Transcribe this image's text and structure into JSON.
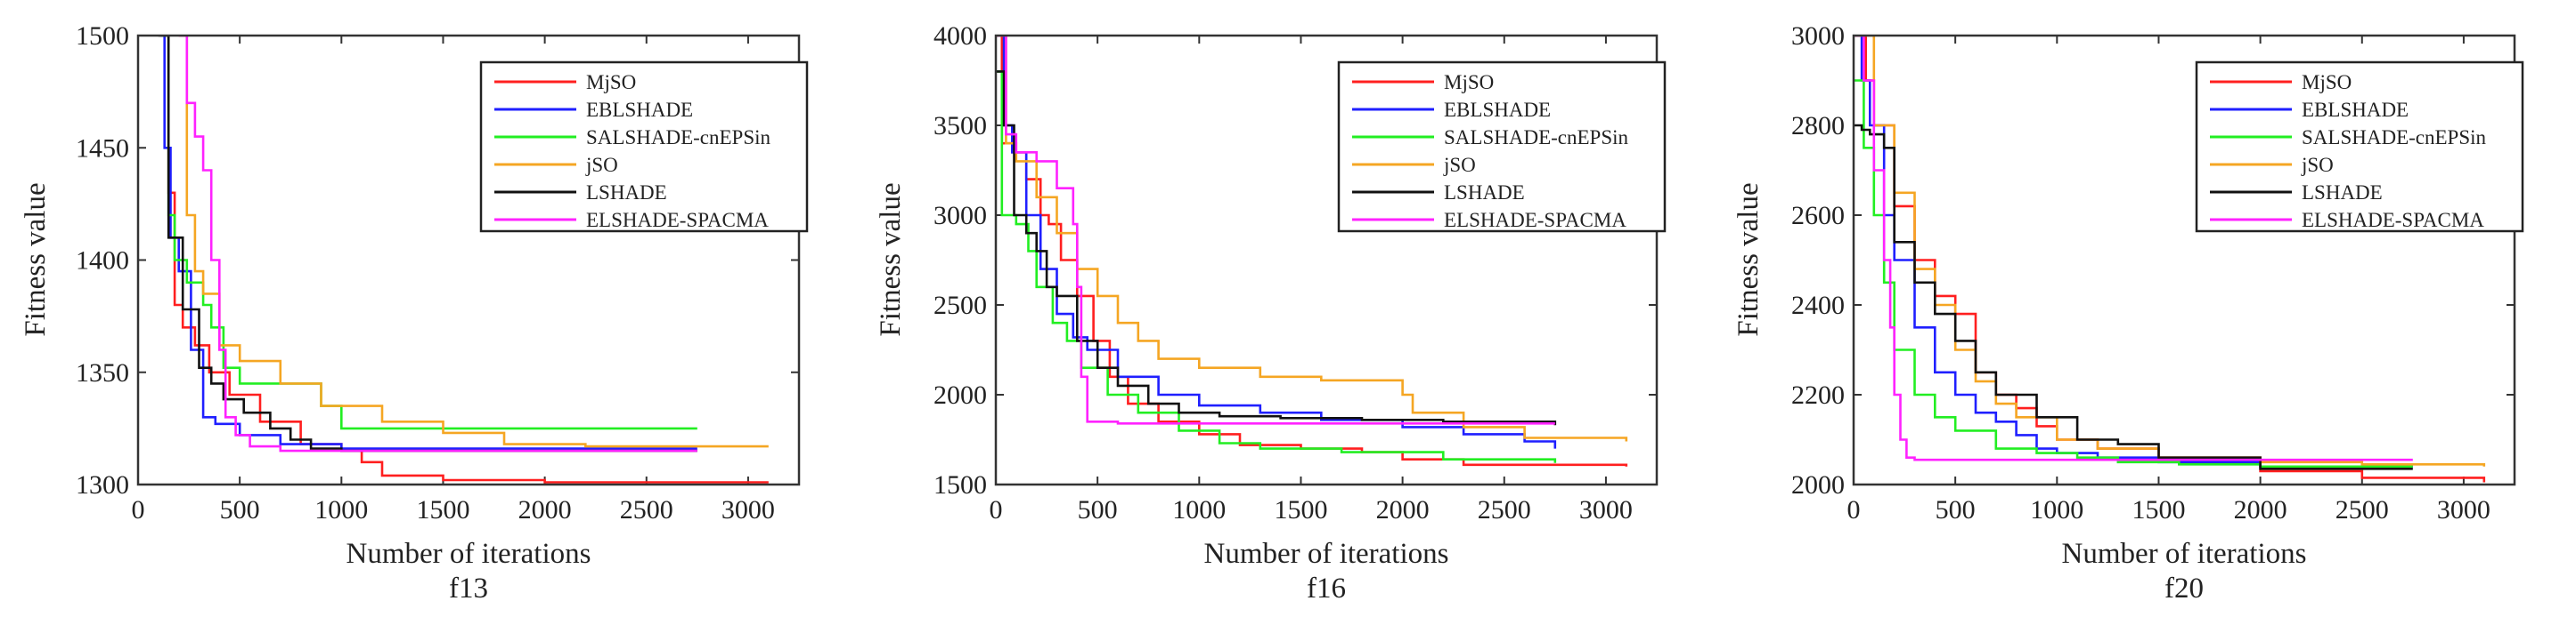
{
  "figure": {
    "series_names": [
      "MjSO",
      "EBLSHADE",
      "SALSHADE-cnEPSin",
      "jSO",
      "LSHADE",
      "ELSHADE-SPACMA"
    ],
    "series_colors": [
      "#ff1f1f",
      "#1f1fff",
      "#22ee22",
      "#f5a623",
      "#111111",
      "#ff22ff"
    ]
  },
  "chart_data": [
    {
      "type": "line",
      "subtitle": "f13",
      "xlabel": "Number of iterations",
      "ylabel": "Fitness value",
      "xlim": [
        0,
        3250
      ],
      "ylim": [
        1300,
        1500
      ],
      "xticks": [
        "0",
        "500",
        "1000",
        "1500",
        "2000",
        "2500",
        "3000"
      ],
      "yticks": [
        "1300",
        "1350",
        "1400",
        "1450",
        "1500"
      ],
      "legend_position": "top-right",
      "series": [
        {
          "name": "MjSO",
          "color": "#ff1f1f",
          "x": [
            120,
            150,
            180,
            220,
            280,
            350,
            450,
            600,
            800,
            1000,
            1100,
            1200,
            1500,
            2000,
            3100
          ],
          "y": [
            1500,
            1430,
            1380,
            1370,
            1362,
            1350,
            1340,
            1328,
            1318,
            1315,
            1310,
            1304,
            1302,
            1301,
            1301
          ]
        },
        {
          "name": "EBLSHADE",
          "color": "#1f1fff",
          "x": [
            110,
            130,
            160,
            200,
            260,
            320,
            380,
            500,
            700,
            1000,
            2750
          ],
          "y": [
            1500,
            1450,
            1410,
            1395,
            1360,
            1330,
            1327,
            1322,
            1318,
            1316,
            1316
          ]
        },
        {
          "name": "SALSHADE-cnEPSin",
          "color": "#22ee22",
          "x": [
            120,
            150,
            180,
            240,
            320,
            360,
            420,
            500,
            700,
            900,
            1000,
            2750
          ],
          "y": [
            1500,
            1420,
            1400,
            1390,
            1380,
            1370,
            1352,
            1345,
            1345,
            1335,
            1325,
            1325
          ]
        },
        {
          "name": "jSO",
          "color": "#f5a623",
          "x": [
            200,
            240,
            280,
            320,
            400,
            500,
            700,
            900,
            1200,
            1500,
            1800,
            2200,
            3100
          ],
          "y": [
            1500,
            1420,
            1395,
            1385,
            1362,
            1355,
            1345,
            1335,
            1328,
            1323,
            1318,
            1317,
            1317
          ]
        },
        {
          "name": "LSHADE",
          "color": "#111111",
          "x": [
            100,
            150,
            220,
            300,
            360,
            420,
            520,
            650,
            750,
            850,
            1000,
            2750
          ],
          "y": [
            1500,
            1410,
            1378,
            1352,
            1345,
            1338,
            1332,
            1325,
            1320,
            1316,
            1315,
            1315
          ]
        },
        {
          "name": "ELSHADE-SPACMA",
          "color": "#ff22ff",
          "x": [
            200,
            240,
            280,
            320,
            360,
            400,
            430,
            480,
            550,
            700,
            2750
          ],
          "y": [
            1500,
            1470,
            1455,
            1440,
            1400,
            1360,
            1330,
            1322,
            1317,
            1315,
            1315
          ]
        }
      ]
    },
    {
      "type": "line",
      "subtitle": "f16",
      "xlabel": "Number of iterations",
      "ylabel": "Fitness value",
      "xlim": [
        0,
        3250
      ],
      "ylim": [
        1500,
        4000
      ],
      "xticks": [
        "0",
        "500",
        "1000",
        "1500",
        "2000",
        "2500",
        "3000"
      ],
      "yticks": [
        "1500",
        "2000",
        "2500",
        "3000",
        "3500",
        "4000"
      ],
      "legend_position": "top-right",
      "series": [
        {
          "name": "MjSO",
          "color": "#ff1f1f",
          "x": [
            0,
            30,
            80,
            150,
            220,
            260,
            320,
            400,
            480,
            560,
            650,
            800,
            1000,
            1200,
            1500,
            1800,
            2000,
            2300,
            3100
          ],
          "y": [
            4000,
            3400,
            3350,
            3200,
            3000,
            2950,
            2750,
            2550,
            2300,
            2100,
            1950,
            1850,
            1780,
            1720,
            1700,
            1680,
            1640,
            1610,
            1600
          ]
        },
        {
          "name": "EBLSHADE",
          "color": "#1f1fff",
          "x": [
            0,
            40,
            80,
            150,
            220,
            300,
            380,
            450,
            600,
            800,
            1000,
            1300,
            1600,
            2000,
            2300,
            2600,
            2750
          ],
          "y": [
            4000,
            3500,
            3350,
            3000,
            2700,
            2450,
            2320,
            2250,
            2100,
            2000,
            1940,
            1900,
            1860,
            1820,
            1780,
            1740,
            1700
          ]
        },
        {
          "name": "SALSHADE-cnEPSin",
          "color": "#22ee22",
          "x": [
            0,
            30,
            100,
            160,
            200,
            280,
            350,
            420,
            550,
            700,
            900,
            1100,
            1300,
            1700,
            2200,
            2750
          ],
          "y": [
            3800,
            3000,
            2950,
            2800,
            2600,
            2400,
            2300,
            2150,
            2000,
            1900,
            1800,
            1730,
            1700,
            1680,
            1640,
            1620
          ]
        },
        {
          "name": "jSO",
          "color": "#f5a623",
          "x": [
            0,
            50,
            100,
            200,
            300,
            400,
            500,
            600,
            700,
            800,
            1000,
            1300,
            1600,
            2000,
            2050,
            2300,
            2600,
            3100
          ],
          "y": [
            4000,
            3400,
            3300,
            3100,
            2900,
            2700,
            2550,
            2400,
            2300,
            2200,
            2150,
            2100,
            2080,
            2000,
            1900,
            1820,
            1760,
            1740
          ]
        },
        {
          "name": "LSHADE",
          "color": "#111111",
          "x": [
            0,
            40,
            90,
            150,
            200,
            250,
            300,
            400,
            500,
            600,
            750,
            900,
            1100,
            1400,
            1800,
            2200,
            2750
          ],
          "y": [
            3800,
            3500,
            3000,
            2900,
            2800,
            2600,
            2550,
            2300,
            2150,
            2050,
            1950,
            1900,
            1880,
            1870,
            1860,
            1850,
            1830
          ]
        },
        {
          "name": "ELSHADE-SPACMA",
          "color": "#ff22ff",
          "x": [
            0,
            50,
            100,
            200,
            300,
            380,
            400,
            420,
            450,
            600,
            1000,
            2750
          ],
          "y": [
            4000,
            3450,
            3350,
            3300,
            3150,
            2950,
            2600,
            2100,
            1850,
            1840,
            1840,
            1840
          ]
        }
      ]
    },
    {
      "type": "line",
      "subtitle": "f20",
      "xlabel": "Number of iterations",
      "ylabel": "Fitness value",
      "xlim": [
        0,
        3250
      ],
      "ylim": [
        2000,
        3000
      ],
      "xticks": [
        "0",
        "500",
        "1000",
        "1500",
        "2000",
        "2500",
        "3000"
      ],
      "yticks": [
        "2000",
        "2200",
        "2400",
        "2600",
        "2800",
        "3000"
      ],
      "legend_position": "top-right",
      "series": [
        {
          "name": "MjSO",
          "color": "#ff1f1f",
          "x": [
            0,
            60,
            100,
            200,
            300,
            400,
            500,
            600,
            700,
            800,
            900,
            1000,
            1200,
            1500,
            2000,
            2500,
            3100
          ],
          "y": [
            3000,
            2900,
            2800,
            2620,
            2500,
            2420,
            2380,
            2250,
            2200,
            2170,
            2130,
            2100,
            2080,
            2060,
            2030,
            2015,
            2005
          ]
        },
        {
          "name": "EBLSHADE",
          "color": "#1f1fff",
          "x": [
            0,
            40,
            80,
            150,
            200,
            300,
            400,
            500,
            600,
            700,
            800,
            900,
            1000,
            1200,
            1500,
            2000,
            2750
          ],
          "y": [
            3000,
            2900,
            2800,
            2600,
            2500,
            2350,
            2250,
            2200,
            2160,
            2140,
            2110,
            2080,
            2070,
            2060,
            2050,
            2040,
            2040
          ]
        },
        {
          "name": "SALSHADE-cnEPSin",
          "color": "#22ee22",
          "x": [
            0,
            50,
            100,
            150,
            200,
            300,
            400,
            500,
            700,
            900,
            1100,
            1300,
            1600,
            2000,
            2750
          ],
          "y": [
            2900,
            2750,
            2600,
            2450,
            2300,
            2200,
            2150,
            2120,
            2080,
            2070,
            2060,
            2050,
            2045,
            2040,
            2040
          ]
        },
        {
          "name": "jSO",
          "color": "#f5a623",
          "x": [
            0,
            100,
            200,
            300,
            400,
            500,
            600,
            700,
            800,
            1000,
            1200,
            1500,
            2000,
            2500,
            3100
          ],
          "y": [
            3000,
            2800,
            2650,
            2480,
            2400,
            2300,
            2230,
            2180,
            2150,
            2100,
            2080,
            2060,
            2050,
            2045,
            2040
          ]
        },
        {
          "name": "LSHADE",
          "color": "#111111",
          "x": [
            0,
            40,
            80,
            150,
            200,
            300,
            400,
            500,
            600,
            700,
            900,
            1100,
            1300,
            1500,
            2000,
            2750
          ],
          "y": [
            2800,
            2790,
            2780,
            2750,
            2540,
            2450,
            2380,
            2320,
            2250,
            2200,
            2150,
            2100,
            2090,
            2060,
            2035,
            2035
          ]
        },
        {
          "name": "ELSHADE-SPACMA",
          "color": "#ff22ff",
          "x": [
            0,
            50,
            100,
            150,
            180,
            200,
            230,
            260,
            300,
            1000,
            2750
          ],
          "y": [
            3000,
            2900,
            2700,
            2500,
            2350,
            2200,
            2100,
            2060,
            2055,
            2055,
            2055
          ]
        }
      ]
    }
  ]
}
